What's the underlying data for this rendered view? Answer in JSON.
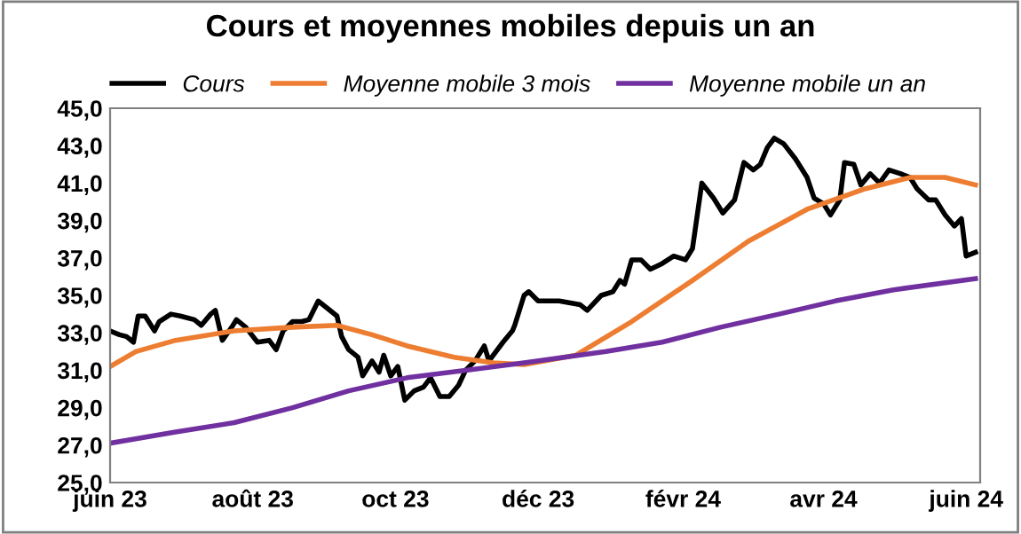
{
  "chart_data": {
    "type": "line",
    "title": "Cours et moyennes mobiles depuis un an",
    "legend": "top",
    "grid": false,
    "marker": "none",
    "line_style": "solid",
    "xlim": [
      "2023-06-01",
      "2024-06-07"
    ],
    "xticks": [
      {
        "value": "2023-06-01",
        "label": "juin 23"
      },
      {
        "value": "2023-08-01",
        "label": "août 23"
      },
      {
        "value": "2023-10-01",
        "label": "oct 23"
      },
      {
        "value": "2023-12-01",
        "label": "déc 23"
      },
      {
        "value": "2024-02-01",
        "label": "févr 24"
      },
      {
        "value": "2024-04-01",
        "label": "avr 24"
      },
      {
        "value": "2024-06-01",
        "label": "juin 24"
      }
    ],
    "ylim": [
      25,
      45
    ],
    "yticks": [
      {
        "value": 25,
        "label": "25,0"
      },
      {
        "value": 27,
        "label": "27,0"
      },
      {
        "value": 29,
        "label": "29,0"
      },
      {
        "value": 31,
        "label": "31,0"
      },
      {
        "value": 33,
        "label": "33,0"
      },
      {
        "value": 35,
        "label": "35,0"
      },
      {
        "value": 37,
        "label": "37,0"
      },
      {
        "value": 39,
        "label": "39,0"
      },
      {
        "value": 41,
        "label": "41,0"
      },
      {
        "value": 43,
        "label": "43,0"
      },
      {
        "value": 45,
        "label": "45,0"
      }
    ],
    "series": [
      {
        "name": "Cours",
        "color": "#000000",
        "x": [
          "2023-06-01",
          "2023-06-05",
          "2023-06-08",
          "2023-06-11",
          "2023-06-13",
          "2023-06-16",
          "2023-06-20",
          "2023-06-22",
          "2023-06-27",
          "2023-07-01",
          "2023-07-07",
          "2023-07-10",
          "2023-07-14",
          "2023-07-16",
          "2023-07-19",
          "2023-07-23",
          "2023-07-25",
          "2023-07-29",
          "2023-08-03",
          "2023-08-08",
          "2023-08-11",
          "2023-08-14",
          "2023-08-18",
          "2023-08-22",
          "2023-08-25",
          "2023-08-29",
          "2023-09-02",
          "2023-09-06",
          "2023-09-08",
          "2023-09-11",
          "2023-09-15",
          "2023-09-17",
          "2023-09-21",
          "2023-09-24",
          "2023-09-26",
          "2023-09-29",
          "2023-10-02",
          "2023-10-05",
          "2023-10-09",
          "2023-10-13",
          "2023-10-16",
          "2023-10-20",
          "2023-10-24",
          "2023-10-28",
          "2023-10-31",
          "2023-11-04",
          "2023-11-08",
          "2023-11-10",
          "2023-11-16",
          "2023-11-20",
          "2023-11-21",
          "2023-11-25",
          "2023-11-27",
          "2023-12-01",
          "2023-12-10",
          "2023-12-19",
          "2023-12-22",
          "2023-12-28",
          "2024-01-02",
          "2024-01-05",
          "2024-01-07",
          "2024-01-10",
          "2024-01-14",
          "2024-01-18",
          "2024-01-23",
          "2024-01-28",
          "2024-02-02",
          "2024-02-05",
          "2024-02-09",
          "2024-02-14",
          "2024-02-18",
          "2024-02-23",
          "2024-02-27",
          "2024-03-02",
          "2024-03-05",
          "2024-03-08",
          "2024-03-11",
          "2024-03-15",
          "2024-03-20",
          "2024-03-25",
          "2024-03-28",
          "2024-04-01",
          "2024-04-04",
          "2024-04-08",
          "2024-04-10",
          "2024-04-14",
          "2024-04-17",
          "2024-04-21",
          "2024-04-25",
          "2024-04-29",
          "2024-05-04",
          "2024-05-08",
          "2024-05-11",
          "2024-05-16",
          "2024-05-19",
          "2024-05-23",
          "2024-05-27",
          "2024-05-30",
          "2024-06-01",
          "2024-06-05"
        ],
        "values": [
          33.1,
          32.9,
          32.8,
          32.5,
          33.9,
          33.9,
          33.1,
          33.6,
          34.0,
          33.9,
          33.7,
          33.4,
          34.0,
          34.2,
          32.6,
          33.3,
          33.7,
          33.3,
          32.5,
          32.6,
          32.1,
          33.1,
          33.6,
          33.6,
          33.7,
          34.7,
          34.3,
          33.9,
          32.8,
          32.1,
          31.7,
          30.7,
          31.5,
          30.9,
          31.8,
          30.7,
          31.2,
          29.4,
          29.9,
          30.1,
          30.6,
          29.6,
          29.6,
          30.2,
          31.0,
          31.5,
          32.3,
          31.5,
          32.5,
          33.1,
          33.4,
          35.0,
          35.2,
          34.7,
          34.7,
          34.5,
          34.2,
          35.0,
          35.2,
          35.8,
          35.6,
          36.9,
          36.9,
          36.4,
          36.7,
          37.1,
          36.9,
          37.5,
          41.0,
          40.2,
          39.4,
          40.1,
          42.1,
          41.7,
          42.0,
          42.9,
          43.4,
          43.1,
          42.3,
          41.3,
          40.2,
          39.9,
          39.3,
          40.1,
          42.1,
          42.0,
          40.9,
          41.5,
          41.0,
          41.7,
          41.5,
          41.3,
          40.7,
          40.1,
          40.1,
          39.3,
          38.7,
          39.1,
          37.1,
          37.3
        ]
      },
      {
        "name": "Moyenne mobile 3 mois",
        "color": "#ed7d31",
        "x": [
          "2023-06-01",
          "2023-06-12",
          "2023-06-29",
          "2023-07-24",
          "2023-08-18",
          "2023-09-06",
          "2023-09-21",
          "2023-10-06",
          "2023-10-26",
          "2023-11-12",
          "2023-11-25",
          "2023-12-17",
          "2024-01-10",
          "2024-02-05",
          "2024-02-29",
          "2024-03-25",
          "2024-04-19",
          "2024-05-08",
          "2024-05-23",
          "2024-06-05"
        ],
        "values": [
          31.2,
          32.0,
          32.6,
          33.1,
          33.3,
          33.4,
          32.9,
          32.3,
          31.7,
          31.4,
          31.3,
          31.8,
          33.6,
          35.8,
          37.9,
          39.6,
          40.7,
          41.3,
          41.3,
          40.9
        ]
      },
      {
        "name": "Moyenne mobile un an",
        "color": "#7030a0",
        "x": [
          "2023-06-01",
          "2023-06-29",
          "2023-07-24",
          "2023-08-18",
          "2023-09-11",
          "2023-10-06",
          "2023-10-31",
          "2023-11-25",
          "2023-12-30",
          "2024-01-23",
          "2024-02-17",
          "2024-03-13",
          "2024-04-06",
          "2024-05-01",
          "2024-06-05"
        ],
        "values": [
          27.1,
          27.7,
          28.2,
          29.0,
          29.9,
          30.6,
          31.0,
          31.4,
          32.0,
          32.5,
          33.3,
          34.0,
          34.7,
          35.3,
          35.9
        ]
      }
    ]
  }
}
